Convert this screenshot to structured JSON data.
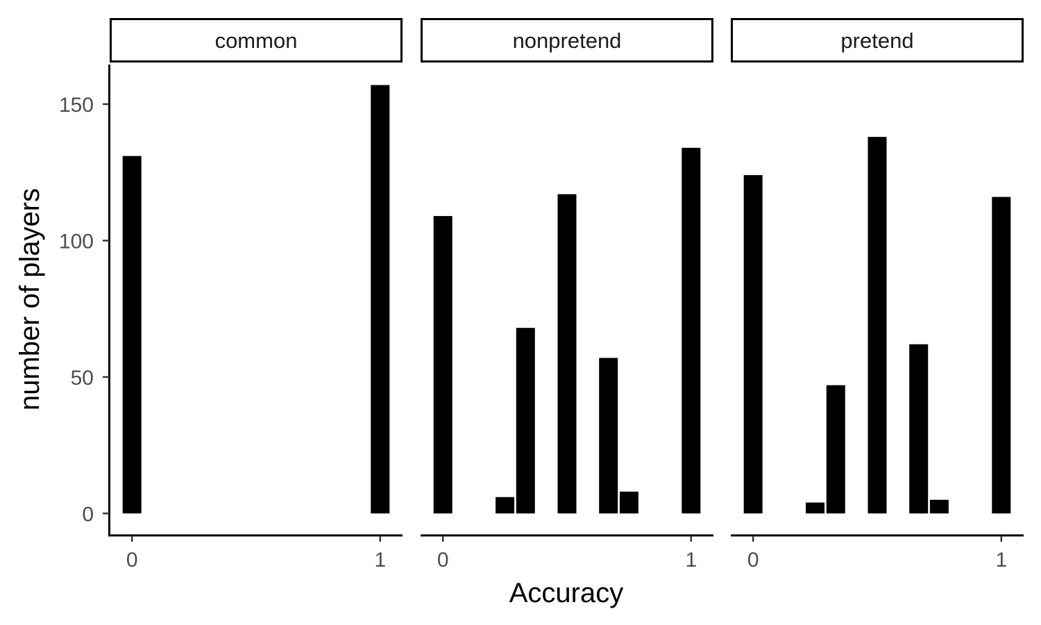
{
  "chart_data": {
    "type": "bar",
    "facets": [
      {
        "name": "common",
        "bars": [
          {
            "x": 0,
            "y": 131
          },
          {
            "x": 1,
            "y": 157
          }
        ]
      },
      {
        "name": "nonpretend",
        "bars": [
          {
            "x": 0,
            "y": 109
          },
          {
            "x": 0.25,
            "y": 6
          },
          {
            "x": 0.333,
            "y": 68
          },
          {
            "x": 0.5,
            "y": 117
          },
          {
            "x": 0.667,
            "y": 57
          },
          {
            "x": 0.75,
            "y": 8
          },
          {
            "x": 1,
            "y": 134
          }
        ]
      },
      {
        "name": "pretend",
        "bars": [
          {
            "x": 0,
            "y": 124
          },
          {
            "x": 0.25,
            "y": 4
          },
          {
            "x": 0.333,
            "y": 47
          },
          {
            "x": 0.5,
            "y": 138
          },
          {
            "x": 0.667,
            "y": 62
          },
          {
            "x": 0.75,
            "y": 5
          },
          {
            "x": 1,
            "y": 116
          }
        ]
      }
    ],
    "xlabel": "Accuracy",
    "ylabel": "number of players",
    "x_ticks": [
      "0",
      "1"
    ],
    "x_tick_values": [
      0,
      1
    ],
    "y_ticks": [
      "0",
      "50",
      "100",
      "150"
    ],
    "y_tick_values": [
      0,
      50,
      100,
      150
    ],
    "xlim": [
      -0.09,
      1.09
    ],
    "ylim": [
      -7.8,
      164.5
    ],
    "grid": false,
    "bar_color": "#000000",
    "tick_label_color": "#4d4d4d"
  }
}
